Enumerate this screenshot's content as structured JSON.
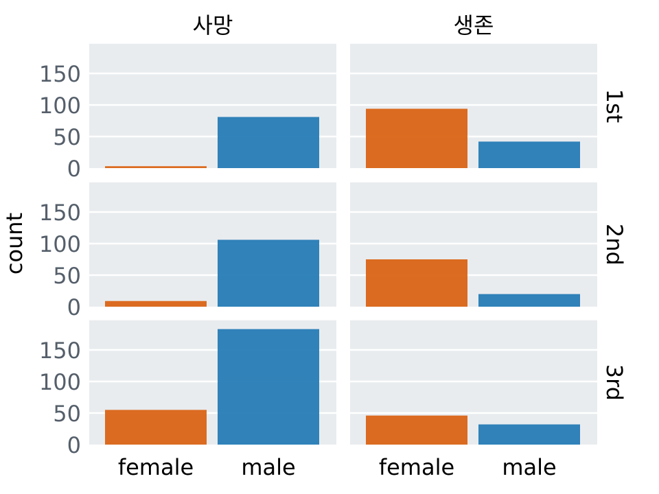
{
  "chart_data": {
    "type": "bar",
    "facet_columns": [
      "사망",
      "생존"
    ],
    "facet_rows": [
      "1st",
      "2nd",
      "3rd"
    ],
    "categories": [
      "female",
      "male"
    ],
    "ylabel": "count",
    "xlabel": "",
    "ylim": [
      0,
      197
    ],
    "yticks": [
      0,
      50,
      100,
      150
    ],
    "colors": {
      "female": "#d95f0e",
      "male": "#1f78b4"
    },
    "panels": [
      {
        "row": "1st",
        "column": "사망",
        "values": [
          3,
          81
        ]
      },
      {
        "row": "1st",
        "column": "생존",
        "values": [
          94,
          42
        ]
      },
      {
        "row": "2nd",
        "column": "사망",
        "values": [
          9,
          106
        ]
      },
      {
        "row": "2nd",
        "column": "생존",
        "values": [
          75,
          20
        ]
      },
      {
        "row": "3rd",
        "column": "사망",
        "values": [
          55,
          183
        ]
      },
      {
        "row": "3rd",
        "column": "생존",
        "values": [
          46,
          32
        ]
      }
    ]
  }
}
